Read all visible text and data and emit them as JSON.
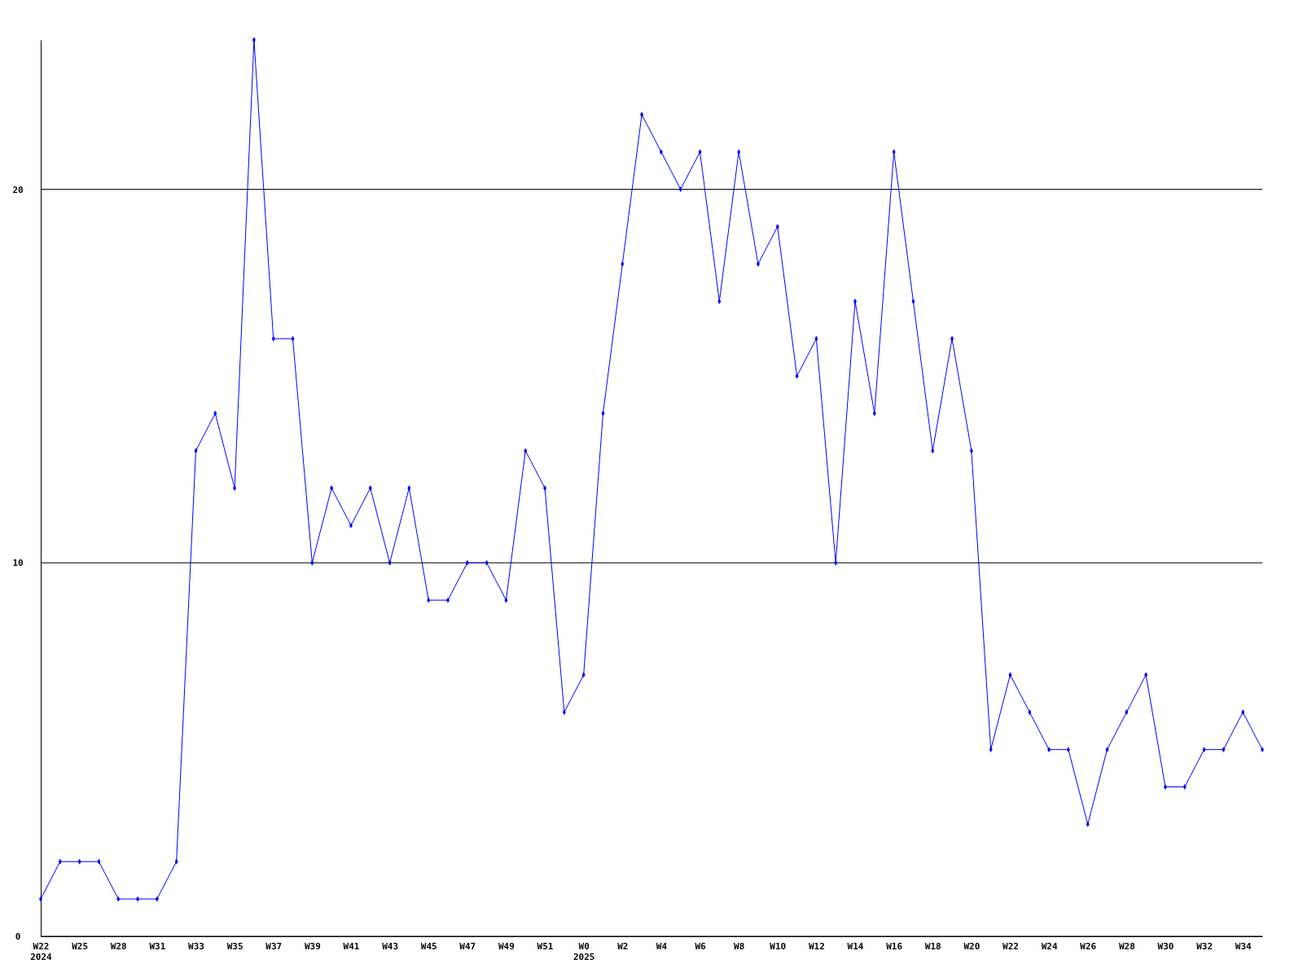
{
  "chart_data": {
    "type": "line",
    "categories": [
      "W22\n2024",
      null,
      "W25",
      null,
      "W28",
      null,
      "W31",
      null,
      "W33",
      null,
      "W35",
      null,
      "W37",
      null,
      "W39",
      null,
      "W41",
      null,
      "W43",
      null,
      "W45",
      null,
      "W47",
      null,
      "W49",
      null,
      "W51",
      null,
      "W0\n2025",
      null,
      "W2",
      null,
      "W4",
      null,
      "W6",
      null,
      "W8",
      null,
      "W10",
      null,
      "W12",
      null,
      "W14",
      null,
      "W16",
      null,
      "W18",
      null,
      "W20",
      null,
      "W22",
      null,
      "W24",
      null,
      "W26",
      null,
      "W28",
      null,
      "W30",
      null,
      "W32",
      null,
      "W34",
      null
    ],
    "series": [
      {
        "color": "#0000ff",
        "values": [
          1,
          2,
          2,
          2,
          1,
          1,
          1,
          2,
          13,
          14,
          12,
          24,
          16,
          16,
          10,
          12,
          11,
          12,
          10,
          12,
          9,
          9,
          10,
          10,
          9,
          13,
          12,
          6,
          7,
          14,
          18,
          22,
          21,
          20,
          21,
          17,
          21,
          18,
          19,
          15,
          16,
          10,
          17,
          14,
          21,
          17,
          13,
          16,
          13,
          5,
          7,
          6,
          5,
          5,
          3,
          5,
          6,
          7,
          4,
          4,
          5,
          5,
          6,
          5
        ]
      }
    ],
    "ylim": [
      0,
      24
    ],
    "yticks": [
      0,
      10,
      20
    ],
    "grid": "y",
    "marker": "diamond",
    "line_style": "solid"
  }
}
